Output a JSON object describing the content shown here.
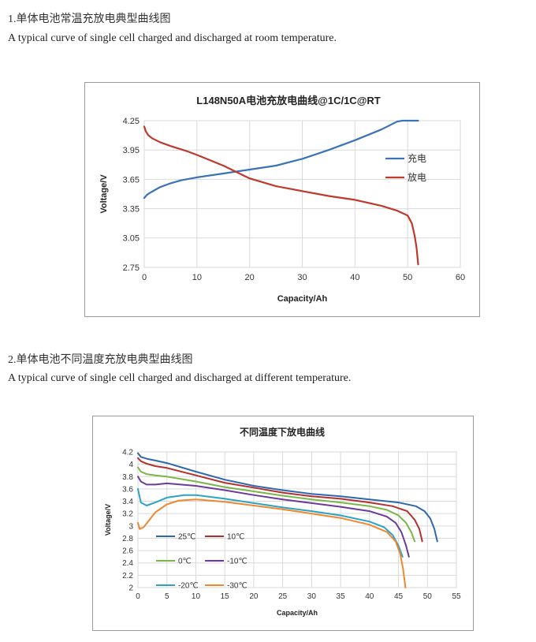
{
  "section1": {
    "heading": "1.单体电池常温充放电典型曲线图",
    "subheading": "A typical curve of single cell charged and discharged at room temperature."
  },
  "section2": {
    "heading": "2.单体电池不同温度充放电典型曲线图",
    "subheading": "A typical curve of single cell charged and discharged at different temperature."
  },
  "chart_data": [
    {
      "type": "line",
      "title": "L148N50A电池充放电曲线@1C/1C@RT",
      "xlabel": "Capacity/Ah",
      "ylabel": "Voltage/V",
      "xlim": [
        0,
        60
      ],
      "ylim": [
        2.75,
        4.25
      ],
      "xticks": [
        0,
        10,
        20,
        30,
        40,
        50,
        60
      ],
      "yticks": [
        2.75,
        3.05,
        3.35,
        3.65,
        3.95,
        4.25
      ],
      "ytick_labels": [
        "2.75",
        "3.05",
        "3.35",
        "3.65",
        "3.95",
        "4.25"
      ],
      "grid": true,
      "legend_position": "right",
      "series": [
        {
          "name": "充电",
          "color": "#3b73b9",
          "x": [
            0,
            0.5,
            1,
            2,
            3,
            5,
            7,
            10,
            15,
            20,
            25,
            30,
            35,
            40,
            45,
            48,
            49,
            52
          ],
          "y": [
            3.46,
            3.49,
            3.51,
            3.54,
            3.57,
            3.61,
            3.64,
            3.67,
            3.71,
            3.75,
            3.79,
            3.86,
            3.95,
            4.05,
            4.16,
            4.24,
            4.25,
            4.25
          ]
        },
        {
          "name": "放电",
          "color": "#c0392b",
          "x": [
            0,
            0.3,
            0.8,
            1.5,
            3,
            5,
            8,
            10,
            15,
            20,
            25,
            30,
            35,
            40,
            45,
            48,
            50,
            50.8,
            51.3,
            51.7,
            52
          ],
          "y": [
            4.19,
            4.14,
            4.1,
            4.07,
            4.03,
            3.99,
            3.94,
            3.9,
            3.79,
            3.66,
            3.58,
            3.53,
            3.48,
            3.44,
            3.38,
            3.33,
            3.28,
            3.2,
            3.08,
            2.95,
            2.78
          ]
        }
      ]
    },
    {
      "type": "line",
      "title": "不同温度下放电曲线",
      "xlabel": "Capacity/Ah",
      "ylabel": "Voltage/V",
      "xlim": [
        0,
        55
      ],
      "ylim": [
        2,
        4.2
      ],
      "xticks": [
        0,
        5,
        10,
        15,
        20,
        25,
        30,
        35,
        40,
        45,
        50,
        55
      ],
      "yticks": [
        2,
        2.2,
        2.4,
        2.6,
        2.8,
        3,
        3.2,
        3.4,
        3.6,
        3.8,
        4,
        4.2
      ],
      "ytick_labels": [
        "2",
        "2.2",
        "2.4",
        "2.6",
        "2.8",
        "3",
        "3.2",
        "3.4",
        "3.6",
        "3.8",
        "4",
        "4.2"
      ],
      "grid": true,
      "legend_position": "bottom-left",
      "series": [
        {
          "name": "25℃",
          "color": "#2e67b1",
          "x": [
            0,
            0.5,
            1.5,
            3,
            5,
            10,
            15,
            20,
            25,
            30,
            35,
            40,
            45,
            48,
            49.5,
            50.5,
            51.2,
            51.7
          ],
          "y": [
            4.18,
            4.12,
            4.09,
            4.06,
            4.02,
            3.88,
            3.75,
            3.65,
            3.58,
            3.52,
            3.48,
            3.43,
            3.38,
            3.32,
            3.24,
            3.12,
            2.95,
            2.75
          ]
        },
        {
          "name": "10℃",
          "color": "#b4302c",
          "x": [
            0,
            0.5,
            1.5,
            3,
            5,
            10,
            15,
            20,
            25,
            30,
            35,
            40,
            44,
            46.5,
            47.8,
            48.6,
            49.1
          ],
          "y": [
            4.1,
            4.05,
            4.01,
            3.97,
            3.94,
            3.82,
            3.7,
            3.62,
            3.54,
            3.48,
            3.44,
            3.38,
            3.32,
            3.24,
            3.1,
            2.95,
            2.75
          ]
        },
        {
          "name": "0℃",
          "color": "#7ab648",
          "x": [
            0,
            0.5,
            1.5,
            3,
            5,
            10,
            15,
            20,
            25,
            30,
            35,
            40,
            43,
            45,
            46.3,
            47.2,
            47.8
          ],
          "y": [
            3.95,
            3.88,
            3.84,
            3.82,
            3.8,
            3.72,
            3.63,
            3.56,
            3.49,
            3.43,
            3.38,
            3.32,
            3.26,
            3.17,
            3.05,
            2.9,
            2.75
          ]
        },
        {
          "name": "-10℃",
          "color": "#6b3b9a",
          "x": [
            0,
            0.5,
            1.5,
            3,
            5,
            10,
            15,
            20,
            25,
            30,
            35,
            40,
            43,
            44.5,
            45.5,
            46.3,
            46.8
          ],
          "y": [
            3.8,
            3.72,
            3.67,
            3.67,
            3.69,
            3.65,
            3.58,
            3.5,
            3.43,
            3.37,
            3.31,
            3.24,
            3.15,
            3.05,
            2.9,
            2.68,
            2.5
          ]
        },
        {
          "name": "-20℃",
          "color": "#2aa3c4",
          "x": [
            0,
            0.5,
            1.5,
            3,
            5,
            8,
            10,
            15,
            20,
            25,
            30,
            35,
            40,
            42.5,
            44,
            45,
            45.7
          ],
          "y": [
            3.6,
            3.38,
            3.33,
            3.38,
            3.46,
            3.5,
            3.5,
            3.44,
            3.37,
            3.3,
            3.24,
            3.17,
            3.07,
            2.98,
            2.85,
            2.68,
            2.5
          ]
        },
        {
          "name": "-30℃",
          "color": "#f0862d",
          "x": [
            0,
            0.3,
            1,
            2,
            3,
            5,
            7,
            10,
            15,
            20,
            25,
            30,
            35,
            40,
            43,
            44.5,
            45.3,
            45.8,
            46.2
          ],
          "y": [
            3.05,
            2.95,
            2.98,
            3.1,
            3.22,
            3.35,
            3.41,
            3.43,
            3.39,
            3.33,
            3.27,
            3.2,
            3.13,
            3.02,
            2.9,
            2.75,
            2.55,
            2.3,
            2.0
          ]
        }
      ]
    }
  ]
}
